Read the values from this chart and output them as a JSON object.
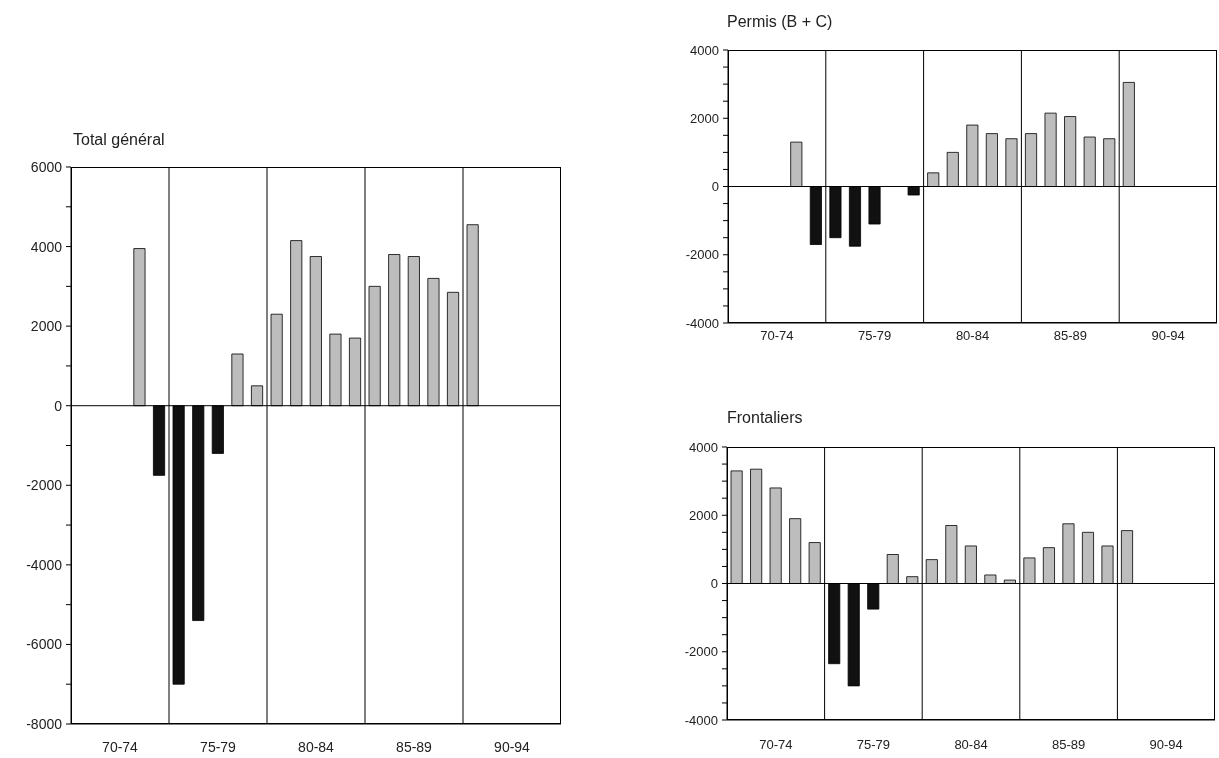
{
  "chart_data": [
    {
      "type": "bar",
      "title": "Total général",
      "categories": [
        "70-74",
        "75-79",
        "80-84",
        "85-89",
        "90-94"
      ],
      "series": [
        {
          "values": [
            null,
            -7000,
            2300,
            3000,
            4550
          ],
          "colors": [
            null,
            "#111111",
            "#bdbdbd",
            "#bdbdbd",
            "#bdbdbd"
          ]
        },
        {
          "values": [
            null,
            -5400,
            4150,
            3800,
            null
          ],
          "colors": [
            null,
            "#111111",
            "#bdbdbd",
            "#bdbdbd",
            null
          ]
        },
        {
          "values": [
            null,
            -1200,
            3750,
            3750,
            null
          ],
          "colors": [
            null,
            "#111111",
            "#bdbdbd",
            "#bdbdbd",
            null
          ]
        },
        {
          "values": [
            3950,
            1300,
            1800,
            3200,
            null
          ],
          "colors": [
            "#bdbdbd",
            "#bdbdbd",
            "#bdbdbd",
            "#bdbdbd",
            null
          ]
        },
        {
          "values": [
            -1750,
            500,
            1700,
            2850,
            null
          ],
          "colors": [
            "#111111",
            "#bdbdbd",
            "#bdbdbd",
            "#bdbdbd",
            null
          ]
        }
      ],
      "ylim": [
        -8000,
        6000
      ],
      "yticks": [
        -8000,
        {
          "value": -7000,
          "label": null
        },
        -6000,
        {
          "value": -5000,
          "label": null
        },
        -4000,
        {
          "value": -3000,
          "label": null
        },
        -2000,
        {
          "value": -1000,
          "label": null
        },
        0,
        {
          "value": 1000,
          "label": null
        },
        2000,
        {
          "value": 3000,
          "label": null
        },
        4000,
        {
          "value": 5000,
          "label": null
        },
        6000
      ],
      "grid": "x",
      "ref_lines": [
        {
          "axis": "y",
          "value": 0
        }
      ]
    },
    {
      "type": "bar",
      "title": "Permis (B + C)",
      "categories": [
        "70-74",
        "75-79",
        "80-84",
        "85-89",
        "90-94"
      ],
      "series": [
        {
          "values": [
            null,
            -1500,
            400,
            1550,
            3050
          ],
          "colors": [
            null,
            "#111111",
            "#bdbdbd",
            "#bdbdbd",
            "#bdbdbd"
          ]
        },
        {
          "values": [
            null,
            -1750,
            1000,
            2150,
            null
          ],
          "colors": [
            null,
            "#111111",
            "#bdbdbd",
            "#bdbdbd",
            null
          ]
        },
        {
          "values": [
            null,
            -1100,
            1800,
            2050,
            null
          ],
          "colors": [
            null,
            "#111111",
            "#bdbdbd",
            "#bdbdbd",
            null
          ]
        },
        {
          "values": [
            1300,
            null,
            1550,
            1450,
            null
          ],
          "colors": [
            "#bdbdbd",
            null,
            "#bdbdbd",
            "#bdbdbd",
            null
          ]
        },
        {
          "values": [
            -1700,
            -250,
            1400,
            1400,
            null
          ],
          "colors": [
            "#111111",
            "#111111",
            "#bdbdbd",
            "#bdbdbd",
            null
          ]
        }
      ],
      "ylim": [
        -4000,
        4000
      ],
      "yticks": [
        -4000,
        {
          "value": -3500,
          "label": null
        },
        {
          "value": -3000,
          "label": null
        },
        {
          "value": -2500,
          "label": null
        },
        -2000,
        {
          "value": -1500,
          "label": null
        },
        {
          "value": -1000,
          "label": null
        },
        {
          "value": -500,
          "label": null
        },
        0,
        {
          "value": 500,
          "label": null
        },
        {
          "value": 1000,
          "label": null
        },
        {
          "value": 1500,
          "label": null
        },
        2000,
        {
          "value": 2500,
          "label": null
        },
        {
          "value": 3000,
          "label": null
        },
        {
          "value": 3500,
          "label": null
        },
        4000
      ],
      "grid": "x",
      "ref_lines": [
        {
          "axis": "y",
          "value": 0
        }
      ]
    },
    {
      "type": "bar",
      "title": "Frontaliers",
      "categories": [
        "70-74",
        "75-79",
        "80-84",
        "85-89",
        "90-94"
      ],
      "series": [
        {
          "values": [
            3300,
            -2350,
            700,
            750,
            1550
          ],
          "colors": [
            "#bdbdbd",
            "#111111",
            "#bdbdbd",
            "#bdbdbd",
            "#bdbdbd"
          ]
        },
        {
          "values": [
            3350,
            -3000,
            1700,
            1050,
            null
          ],
          "colors": [
            "#bdbdbd",
            "#111111",
            "#bdbdbd",
            "#bdbdbd",
            null
          ]
        },
        {
          "values": [
            2800,
            -750,
            1100,
            1750,
            null
          ],
          "colors": [
            "#bdbdbd",
            "#111111",
            "#bdbdbd",
            "#bdbdbd",
            null
          ]
        },
        {
          "values": [
            1900,
            850,
            250,
            1500,
            null
          ],
          "colors": [
            "#bdbdbd",
            "#bdbdbd",
            "#bdbdbd",
            "#bdbdbd",
            null
          ]
        },
        {
          "values": [
            1200,
            200,
            100,
            1100,
            null
          ],
          "colors": [
            "#bdbdbd",
            "#bdbdbd",
            "#bdbdbd",
            "#bdbdbd",
            null
          ]
        }
      ],
      "ylim": [
        -4000,
        4000
      ],
      "yticks": [
        -4000,
        {
          "value": -3500,
          "label": null
        },
        {
          "value": -3000,
          "label": null
        },
        {
          "value": -2500,
          "label": null
        },
        -2000,
        {
          "value": -1500,
          "label": null
        },
        {
          "value": -1000,
          "label": null
        },
        {
          "value": -500,
          "label": null
        },
        0,
        {
          "value": 500,
          "label": null
        },
        {
          "value": 1000,
          "label": null
        },
        {
          "value": 1500,
          "label": null
        },
        2000,
        {
          "value": 2500,
          "label": null
        },
        {
          "value": 3000,
          "label": null
        },
        {
          "value": 3500,
          "label": null
        },
        4000
      ],
      "grid": "x",
      "ref_lines": [
        {
          "axis": "y",
          "value": 0
        }
      ]
    }
  ]
}
